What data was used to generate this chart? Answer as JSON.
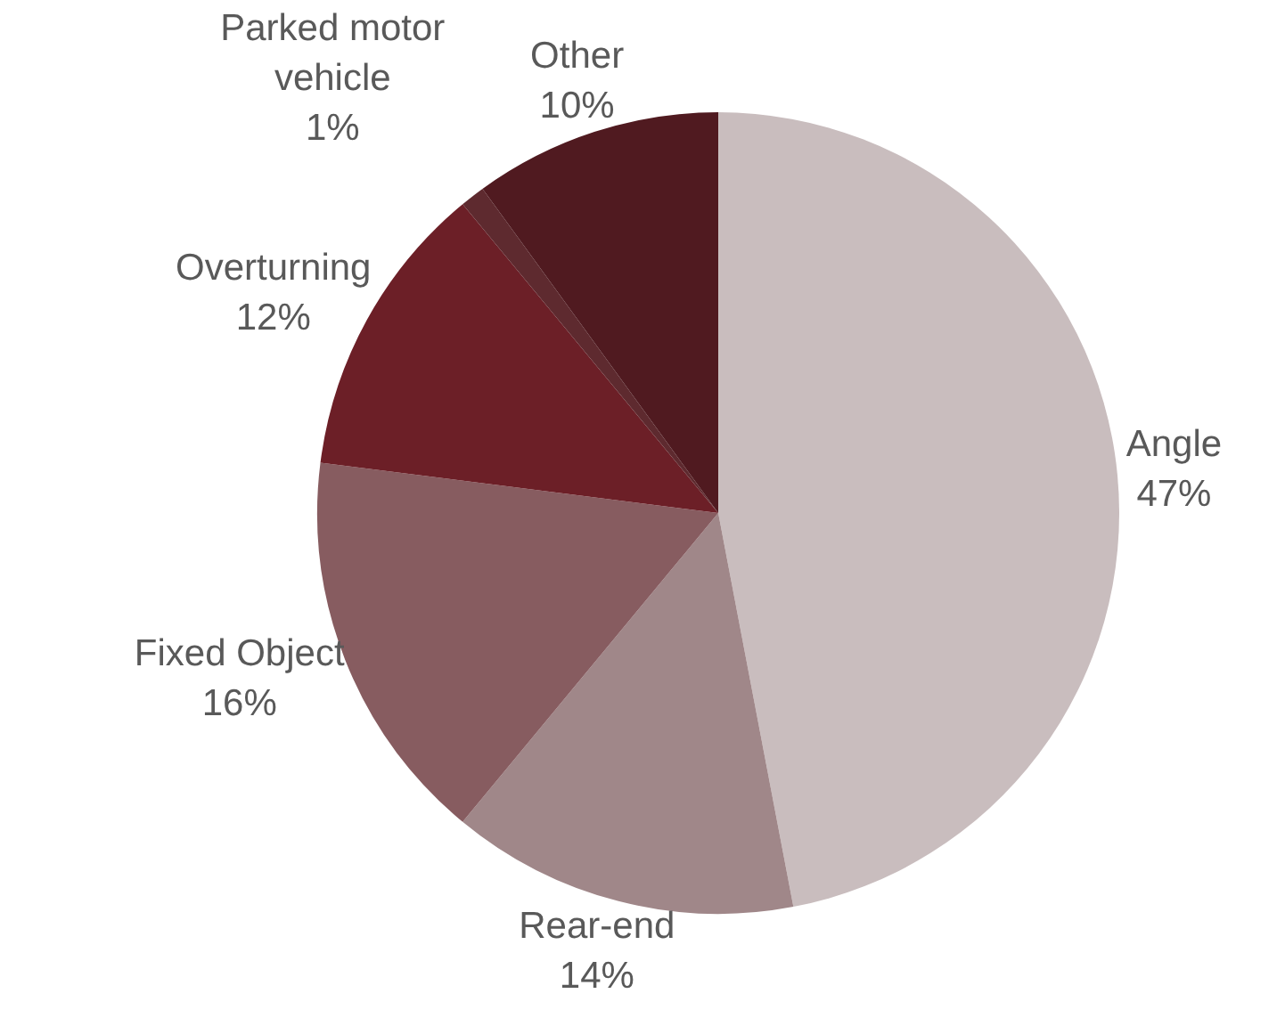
{
  "chart_data": {
    "type": "pie",
    "categories": [
      "Angle",
      "Rear-end",
      "Fixed Object",
      "Overturning",
      "Parked motor vehicle",
      "Other"
    ],
    "values": [
      47,
      14,
      16,
      12,
      1,
      10
    ],
    "colors": [
      "#c9bdbe",
      "#a08789",
      "#875c60",
      "#6c1f27",
      "#5e2a2f",
      "#501a20"
    ],
    "value_labels": [
      "47%",
      "14%",
      "16%",
      "12%",
      "1%",
      "10%"
    ],
    "legend": false
  }
}
